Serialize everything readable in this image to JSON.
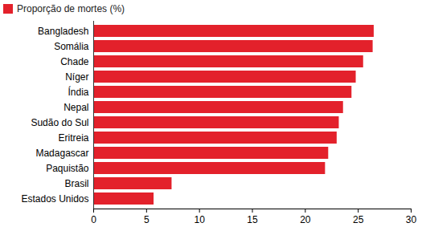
{
  "chart_data": {
    "type": "bar",
    "orientation": "horizontal",
    "categories": [
      "Bangladesh",
      "Somália",
      "Chade",
      "Níger",
      "Índia",
      "Nepal",
      "Sudão do Sul",
      "Eritreia",
      "Madagascar",
      "Paquistão",
      "Brasil",
      "Estados Unidos"
    ],
    "series": [
      {
        "name": "Proporção de mortes (%)",
        "color": "#e3212b",
        "values": [
          26.5,
          26.4,
          25.5,
          24.8,
          24.4,
          23.6,
          23.2,
          23.0,
          22.2,
          21.9,
          7.4,
          5.7
        ]
      }
    ],
    "xlim": [
      0,
      30
    ],
    "xticks": [
      0,
      5,
      10,
      15,
      20,
      25,
      30
    ],
    "grid": false,
    "legend": "top-left"
  }
}
